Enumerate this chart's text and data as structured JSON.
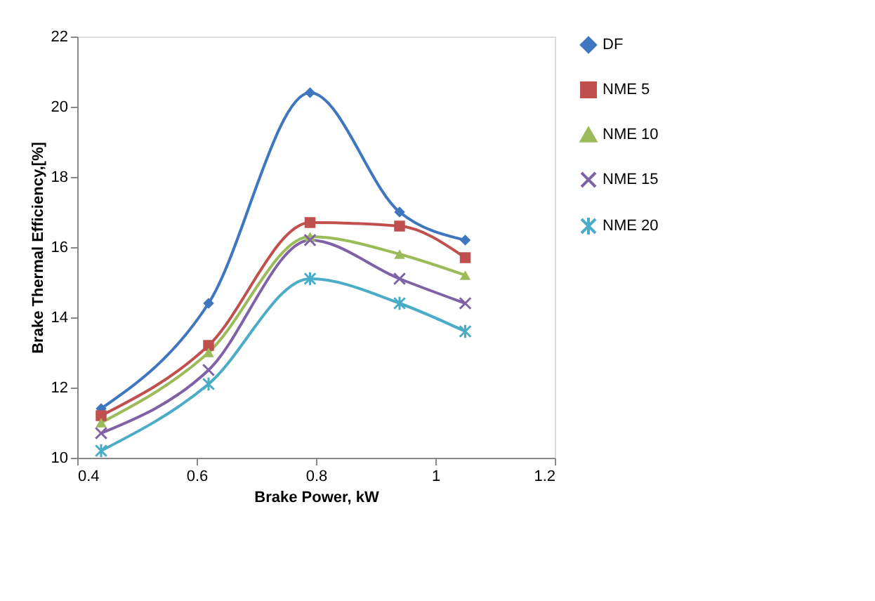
{
  "chart_data": {
    "type": "line",
    "xlabel": "Brake Power, kW",
    "ylabel": "Brake Thermal Efficiency,[%]",
    "x": [
      0.44,
      0.62,
      0.79,
      0.94,
      1.05
    ],
    "series": [
      {
        "name": "DF",
        "color": "#3f76c0",
        "marker": "diamond",
        "values": [
          11.4,
          14.4,
          20.4,
          17.0,
          16.2
        ]
      },
      {
        "name": "NME 5",
        "color": "#c0504d",
        "marker": "square",
        "values": [
          11.2,
          13.2,
          16.7,
          16.6,
          15.7
        ]
      },
      {
        "name": "NME 10",
        "color": "#9bbb59",
        "marker": "triangle",
        "values": [
          11.0,
          13.0,
          16.3,
          15.8,
          15.2
        ]
      },
      {
        "name": "NME 15",
        "color": "#7f62a6",
        "marker": "x",
        "values": [
          10.7,
          12.5,
          16.2,
          15.1,
          14.4
        ]
      },
      {
        "name": "NME 20",
        "color": "#4bacc6",
        "marker": "cross",
        "values": [
          10.2,
          12.1,
          15.1,
          14.4,
          13.6
        ]
      }
    ],
    "xlim": [
      0.4,
      1.2
    ],
    "xticks": [
      0.4,
      0.6,
      0.8,
      1,
      1.2
    ],
    "ylim": [
      10,
      22
    ],
    "yticks": [
      10,
      12,
      14,
      16,
      18,
      20,
      22
    ],
    "grid": false,
    "legend": "right"
  }
}
